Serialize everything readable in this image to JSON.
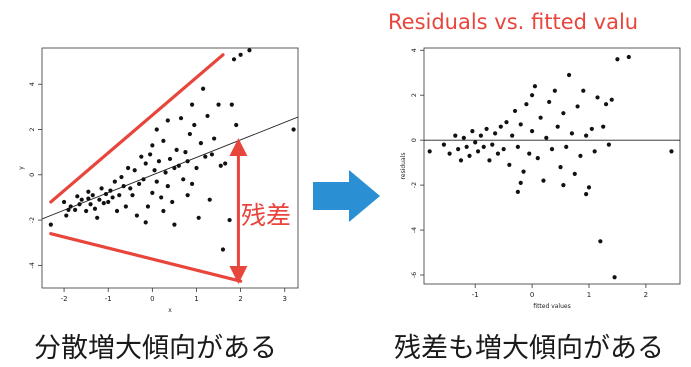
{
  "title_resid": "Residuals vs. fitted valu",
  "annotation_residual": "残差",
  "caption_left": "分散増大傾向がある",
  "caption_right": "残差も増大傾向がある",
  "colors": {
    "accent_red": "#e8453c",
    "arrow_blue": "#2b8fd3",
    "points": "#111111"
  },
  "chart_data": [
    {
      "type": "scatter",
      "title": "",
      "xlabel": "x",
      "ylabel": "y",
      "xlim": [
        -2.5,
        3.3
      ],
      "ylim": [
        -5,
        5.6
      ],
      "xticks": [
        "-2",
        "-1",
        "0",
        "1",
        "2",
        "3"
      ],
      "yticks": [
        "-4",
        "-2",
        "0",
        "2",
        "4"
      ],
      "regression_line": {
        "x": [
          -2.5,
          3.3
        ],
        "y": [
          -1.95,
          2.55
        ]
      },
      "upper_bound_line": {
        "x": [
          -2.3,
          1.6
        ],
        "y": [
          -1.2,
          5.3
        ]
      },
      "lower_bound_line": {
        "x": [
          -2.3,
          2.0
        ],
        "y": [
          -2.6,
          -4.7
        ]
      },
      "residual_arrow": {
        "x": 1.95,
        "y_from": 1.4,
        "y_to": -4.6
      },
      "points": [
        [
          -2.3,
          -2.2
        ],
        [
          -1.95,
          -1.8
        ],
        [
          -1.9,
          -1.55
        ],
        [
          -1.85,
          -1.4
        ],
        [
          -1.75,
          -1.55
        ],
        [
          -1.7,
          -0.95
        ],
        [
          -1.65,
          -1.3
        ],
        [
          -1.6,
          -1.1
        ],
        [
          -1.5,
          -1.6
        ],
        [
          -1.45,
          -1.05
        ],
        [
          -1.45,
          -0.75
        ],
        [
          -1.4,
          -1.3
        ],
        [
          -1.35,
          -0.9
        ],
        [
          -1.3,
          -1.5
        ],
        [
          -1.25,
          -1.9
        ],
        [
          -1.2,
          -1.1
        ],
        [
          -1.15,
          -0.6
        ],
        [
          -1.1,
          -1.25
        ],
        [
          -1.05,
          -0.85
        ],
        [
          -1.0,
          -1.2
        ],
        [
          -0.95,
          -0.7
        ],
        [
          -0.9,
          -1.0
        ],
        [
          -0.85,
          -0.3
        ],
        [
          -0.8,
          -1.6
        ],
        [
          -0.75,
          -0.9
        ],
        [
          -0.7,
          -0.1
        ],
        [
          -0.65,
          -0.5
        ],
        [
          -0.6,
          -1.4
        ],
        [
          -0.55,
          0.3
        ],
        [
          -0.5,
          -0.6
        ],
        [
          -0.45,
          -0.9
        ],
        [
          -0.4,
          0.2
        ],
        [
          -0.35,
          -1.8
        ],
        [
          -0.3,
          -0.4
        ],
        [
          -0.25,
          0.8
        ],
        [
          -0.2,
          -0.2
        ],
        [
          -0.15,
          0.5
        ],
        [
          -0.1,
          -1.4
        ],
        [
          -0.05,
          0.9
        ],
        [
          0.0,
          -0.8
        ],
        [
          0.0,
          1.3
        ],
        [
          0.05,
          0.2
        ],
        [
          0.1,
          2.0
        ],
        [
          0.1,
          -0.3
        ],
        [
          0.15,
          0.6
        ],
        [
          0.2,
          -1.0
        ],
        [
          0.25,
          1.5
        ],
        [
          0.3,
          0.1
        ],
        [
          0.35,
          -0.5
        ],
        [
          0.35,
          2.4
        ],
        [
          0.4,
          0.7
        ],
        [
          0.45,
          -1.2
        ],
        [
          0.5,
          0.3
        ],
        [
          0.5,
          -2.2
        ],
        [
          0.55,
          1.1
        ],
        [
          0.6,
          0.4
        ],
        [
          0.65,
          2.5
        ],
        [
          0.7,
          -0.2
        ],
        [
          0.75,
          1.0
        ],
        [
          0.8,
          -0.9
        ],
        [
          0.8,
          0.6
        ],
        [
          0.85,
          1.8
        ],
        [
          0.9,
          -0.4
        ],
        [
          0.95,
          2.2
        ],
        [
          1.0,
          0.3
        ],
        [
          1.05,
          -1.9
        ],
        [
          1.1,
          1.4
        ],
        [
          1.15,
          3.8
        ],
        [
          1.2,
          0.8
        ],
        [
          1.25,
          2.6
        ],
        [
          1.3,
          -1.1
        ],
        [
          1.35,
          0.9
        ],
        [
          1.4,
          1.6
        ],
        [
          1.5,
          3.1
        ],
        [
          1.55,
          0.4
        ],
        [
          1.6,
          -3.3
        ],
        [
          1.65,
          0.5
        ],
        [
          1.75,
          -2.0
        ],
        [
          1.8,
          3.1
        ],
        [
          1.85,
          5.1
        ],
        [
          1.9,
          2.2
        ],
        [
          2.0,
          5.3
        ],
        [
          2.2,
          5.5
        ],
        [
          -0.15,
          -2.1
        ],
        [
          -2.0,
          -1.2
        ],
        [
          3.2,
          2.0
        ],
        [
          0.9,
          3.1
        ],
        [
          0.25,
          -1.6
        ]
      ]
    },
    {
      "type": "scatter",
      "title": "Residuals vs. fitted valu",
      "xlabel": "fitted values",
      "ylabel": "residuals",
      "xlim": [
        -1.9,
        2.6
      ],
      "ylim": [
        -6.4,
        4.1
      ],
      "xticks": [
        "-1",
        "0",
        "1",
        "2"
      ],
      "yticks": [
        "-6",
        "-4",
        "-2",
        "0",
        "2",
        "4"
      ],
      "reference_line_y": 0,
      "points": [
        [
          -1.8,
          -0.5
        ],
        [
          -1.55,
          -0.2
        ],
        [
          -1.45,
          -0.6
        ],
        [
          -1.35,
          0.2
        ],
        [
          -1.3,
          -0.4
        ],
        [
          -1.25,
          -0.9
        ],
        [
          -1.2,
          0.1
        ],
        [
          -1.15,
          -0.3
        ],
        [
          -1.1,
          -0.7
        ],
        [
          -1.05,
          0.4
        ],
        [
          -1.0,
          -0.1
        ],
        [
          -0.95,
          -0.5
        ],
        [
          -0.9,
          0.2
        ],
        [
          -0.85,
          -0.3
        ],
        [
          -0.8,
          0.5
        ],
        [
          -0.75,
          -0.9
        ],
        [
          -0.7,
          -0.2
        ],
        [
          -0.65,
          0.3
        ],
        [
          -0.6,
          -0.6
        ],
        [
          -0.55,
          0.6
        ],
        [
          -0.5,
          -0.4
        ],
        [
          -0.45,
          0.8
        ],
        [
          -0.4,
          -1.1
        ],
        [
          -0.35,
          0.2
        ],
        [
          -0.3,
          1.3
        ],
        [
          -0.25,
          -0.3
        ],
        [
          -0.2,
          0.7
        ],
        [
          -0.15,
          -1.4
        ],
        [
          -0.1,
          1.6
        ],
        [
          -0.05,
          -0.6
        ],
        [
          0.0,
          2.0
        ],
        [
          0.0,
          0.4
        ],
        [
          0.05,
          2.4
        ],
        [
          0.1,
          -0.8
        ],
        [
          0.15,
          1.0
        ],
        [
          0.2,
          -1.8
        ],
        [
          0.25,
          0.1
        ],
        [
          0.3,
          1.7
        ],
        [
          0.35,
          -0.4
        ],
        [
          0.4,
          2.2
        ],
        [
          0.45,
          0.6
        ],
        [
          0.5,
          -1.2
        ],
        [
          0.55,
          1.2
        ],
        [
          0.6,
          -0.3
        ],
        [
          0.65,
          2.9
        ],
        [
          0.7,
          0.3
        ],
        [
          0.75,
          -1.5
        ],
        [
          0.8,
          1.5
        ],
        [
          0.85,
          -0.7
        ],
        [
          0.9,
          2.2
        ],
        [
          0.95,
          0.2
        ],
        [
          1.0,
          -2.1
        ],
        [
          1.05,
          0.5
        ],
        [
          1.1,
          -0.5
        ],
        [
          1.15,
          1.9
        ],
        [
          1.2,
          -4.5
        ],
        [
          1.25,
          0.6
        ],
        [
          1.35,
          -0.2
        ],
        [
          1.4,
          1.8
        ],
        [
          1.45,
          -6.1
        ],
        [
          1.5,
          3.6
        ],
        [
          1.7,
          3.7
        ],
        [
          2.45,
          -0.5
        ],
        [
          0.55,
          -2.0
        ],
        [
          -0.25,
          -2.3
        ],
        [
          -0.2,
          -1.9
        ],
        [
          0.95,
          -2.4
        ],
        [
          1.3,
          1.6
        ]
      ]
    }
  ]
}
